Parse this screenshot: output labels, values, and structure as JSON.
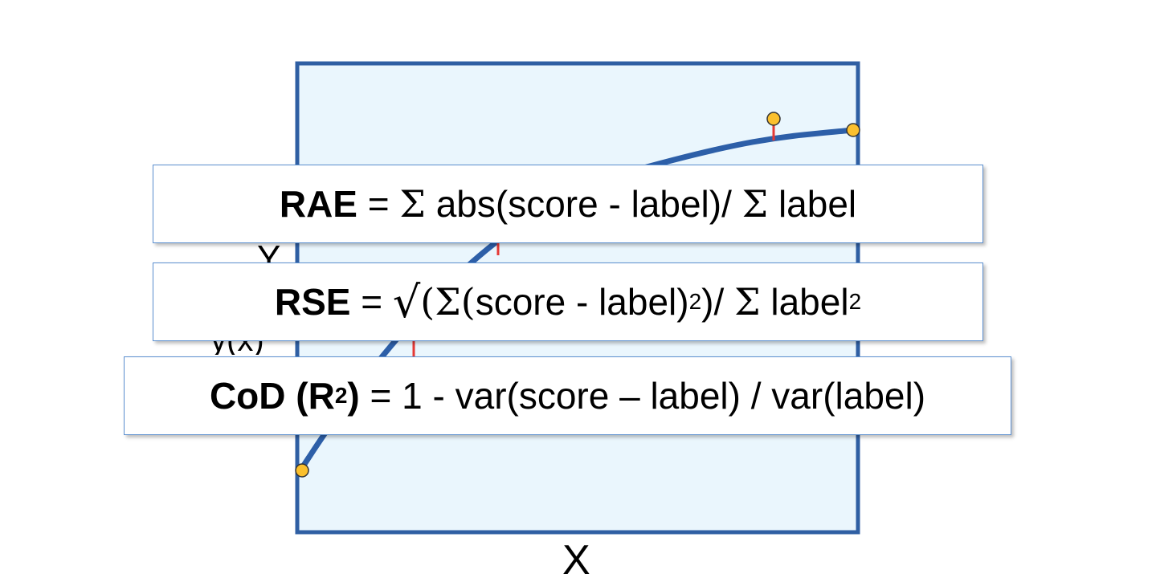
{
  "colors": {
    "plot_fill": "#eaf6fd",
    "plot_border": "#2f5fa3",
    "curve": "#2d5fa8",
    "point_fill": "#fbc02d",
    "point_stroke": "#333333",
    "residual": "#e53935",
    "box_border": "#5b8fcf"
  },
  "axes": {
    "x_label": "X",
    "y_label": "Y",
    "y_partial": "ŷ(x)"
  },
  "formulas": {
    "rae": {
      "name": "RAE",
      "eq": " = ",
      "sum1": "Σ",
      "abs": " abs(score - label)/ ",
      "sum2": "Σ",
      "tail": " label"
    },
    "rse": {
      "name": "RSE",
      "eq": " = ",
      "sqrt": "√",
      "open": "(Σ(",
      "body": "score - label)",
      "sq1": "2",
      "close": ")/ ",
      "sum": "Σ",
      "tail": " label",
      "sq2": "2"
    },
    "cod": {
      "name": "CoD (R",
      "name_sup": "2",
      "name_close": ")",
      "body": " = 1 - var(score – label) / var(label)"
    }
  }
}
